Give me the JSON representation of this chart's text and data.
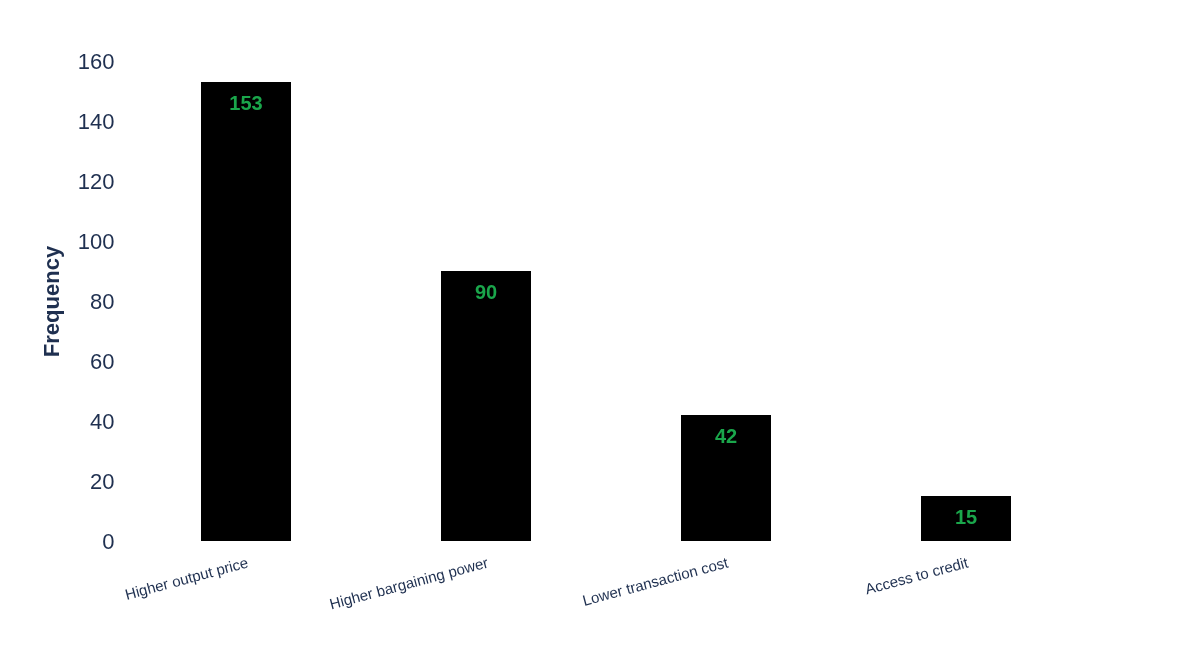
{
  "chart_data": {
    "type": "bar",
    "ylabel": "Frequency",
    "categories": [
      "Higher output price",
      "Higher bargaining power",
      "Lower transaction cost",
      "Access to credit"
    ],
    "values": [
      153,
      90,
      42,
      15
    ],
    "color": "#000000",
    "ylim": [
      0,
      160
    ],
    "yticks": [
      0,
      20,
      40,
      60,
      80,
      100,
      120,
      140,
      160
    ],
    "data_labels": true,
    "grid": false
  }
}
